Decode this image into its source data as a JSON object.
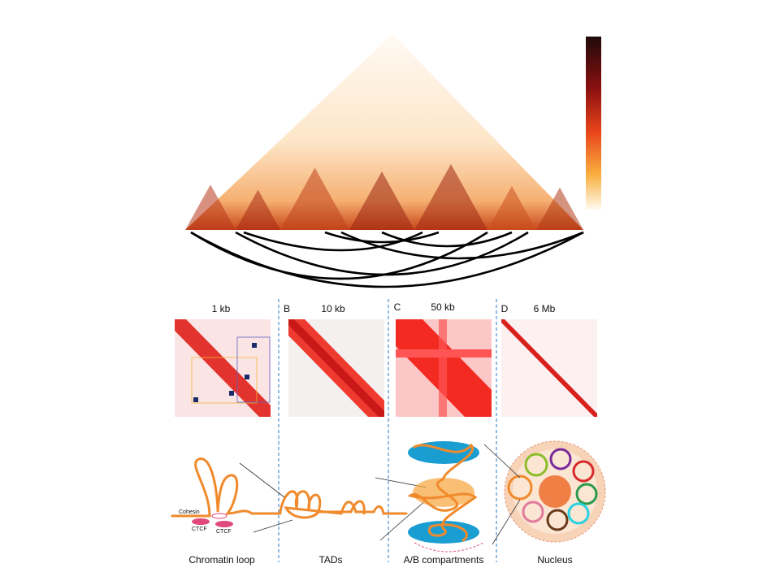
{
  "panels": [
    {
      "resolution": "1 kb",
      "label": "Chromatin loop"
    },
    {
      "letter": "B",
      "resolution": "10 kb",
      "label": "TADs"
    },
    {
      "letter": "C",
      "resolution": "50 kb",
      "label": "A/B compartments"
    },
    {
      "letter": "D",
      "resolution": "6 Mb",
      "label": "Nucleus"
    }
  ],
  "annotations": {
    "cohesin": "Cohesin",
    "ctcf": [
      "CTCF",
      "CTCF"
    ]
  }
}
